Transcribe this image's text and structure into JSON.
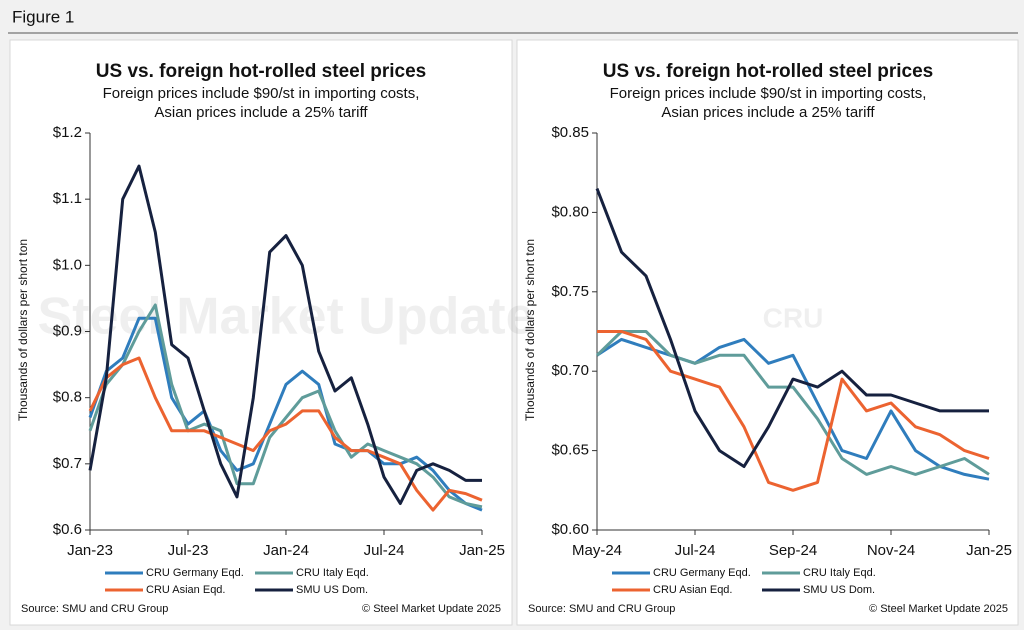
{
  "figure_label": "Figure 1",
  "chart_data": [
    {
      "type": "line",
      "title": "US vs. foreign hot-rolled steel prices",
      "subtitle": [
        "Foreign prices include $90/st in importing costs,",
        "Asian prices include a 25% tariff"
      ],
      "ylabel": "Thousands of dollars per short ton",
      "watermark": "Steel Market Update",
      "source": "Source: SMU and CRU Group",
      "copyright": "© Steel Market Update 2025",
      "x": [
        0,
        1,
        2,
        3,
        4,
        5,
        6,
        7,
        8,
        9,
        10,
        11,
        12,
        13,
        14,
        15,
        16,
        17,
        18,
        19,
        20,
        21,
        22,
        23,
        24
      ],
      "xlim": [
        0,
        24
      ],
      "xticks": [
        {
          "value": 0,
          "label": "Jan-23"
        },
        {
          "value": 6,
          "label": "Jul-23"
        },
        {
          "value": 12,
          "label": "Jan-24"
        },
        {
          "value": 18,
          "label": "Jul-24"
        },
        {
          "value": 24,
          "label": "Jan-25"
        }
      ],
      "ylim": [
        0.6,
        1.2
      ],
      "yticks": [
        {
          "value": 0.6,
          "label": "$0.6"
        },
        {
          "value": 0.7,
          "label": "$0.7"
        },
        {
          "value": 0.8,
          "label": "$0.8"
        },
        {
          "value": 0.9,
          "label": "$0.9"
        },
        {
          "value": 1.0,
          "label": "$1.0"
        },
        {
          "value": 1.1,
          "label": "$1.1"
        },
        {
          "value": 1.2,
          "label": "$1.2"
        }
      ],
      "series": [
        {
          "name": "CRU Germany Eqd.",
          "color": "#2f7dbd",
          "values": [
            0.77,
            0.84,
            0.86,
            0.92,
            0.92,
            0.8,
            0.76,
            0.78,
            0.72,
            0.69,
            0.7,
            0.76,
            0.82,
            0.84,
            0.82,
            0.73,
            0.72,
            0.72,
            0.7,
            0.7,
            0.71,
            0.69,
            0.66,
            0.64,
            0.63
          ]
        },
        {
          "name": "CRU Italy Eqd.",
          "color": "#5f9c9a",
          "values": [
            0.75,
            0.82,
            0.85,
            0.9,
            0.94,
            0.82,
            0.75,
            0.76,
            0.75,
            0.67,
            0.67,
            0.74,
            0.77,
            0.8,
            0.81,
            0.75,
            0.71,
            0.73,
            0.72,
            0.71,
            0.7,
            0.68,
            0.65,
            0.64,
            0.635
          ]
        },
        {
          "name": "CRU Asian Eqd.",
          "color": "#ec6330",
          "values": [
            0.78,
            0.83,
            0.85,
            0.86,
            0.8,
            0.75,
            0.75,
            0.75,
            0.74,
            0.73,
            0.72,
            0.75,
            0.76,
            0.78,
            0.78,
            0.74,
            0.72,
            0.72,
            0.71,
            0.7,
            0.66,
            0.63,
            0.66,
            0.655,
            0.645
          ]
        },
        {
          "name": "SMU US Dom.",
          "color": "#16213f",
          "values": [
            0.69,
            0.83,
            1.1,
            1.15,
            1.05,
            0.88,
            0.86,
            0.78,
            0.7,
            0.65,
            0.8,
            1.02,
            1.045,
            1.0,
            0.87,
            0.81,
            0.83,
            0.76,
            0.68,
            0.64,
            0.69,
            0.7,
            0.69,
            0.675,
            0.675
          ]
        }
      ]
    },
    {
      "type": "line",
      "title": "US vs. foreign hot-rolled steel prices",
      "subtitle": [
        "Foreign prices include $90/st in importing costs,",
        "Asian prices include a 25% tariff"
      ],
      "ylabel": "Thousands of dollars per short ton",
      "watermark": "CRU",
      "source": "Source: SMU and CRU Group",
      "copyright": "© Steel Market Update 2025",
      "x": [
        0,
        0.5,
        1,
        1.5,
        2,
        2.5,
        3,
        3.5,
        4,
        4.5,
        5,
        5.5,
        6,
        6.5,
        7,
        7.5,
        8
      ],
      "xlim": [
        0,
        8
      ],
      "xticks": [
        {
          "value": 0,
          "label": "May-24"
        },
        {
          "value": 2,
          "label": "Jul-24"
        },
        {
          "value": 4,
          "label": "Sep-24"
        },
        {
          "value": 6,
          "label": "Nov-24"
        },
        {
          "value": 8,
          "label": "Jan-25"
        }
      ],
      "ylim": [
        0.6,
        0.85
      ],
      "yticks": [
        {
          "value": 0.6,
          "label": "$0.60"
        },
        {
          "value": 0.65,
          "label": "$0.65"
        },
        {
          "value": 0.7,
          "label": "$0.70"
        },
        {
          "value": 0.75,
          "label": "$0.75"
        },
        {
          "value": 0.8,
          "label": "$0.80"
        },
        {
          "value": 0.85,
          "label": "$0.85"
        }
      ],
      "series": [
        {
          "name": "CRU Germany Eqd.",
          "color": "#2f7dbd",
          "values": [
            0.71,
            0.72,
            0.715,
            0.71,
            0.705,
            0.715,
            0.72,
            0.705,
            0.71,
            0.68,
            0.65,
            0.645,
            0.675,
            0.65,
            0.64,
            0.635,
            0.632
          ]
        },
        {
          "name": "CRU Italy Eqd.",
          "color": "#5f9c9a",
          "values": [
            0.71,
            0.725,
            0.725,
            0.71,
            0.705,
            0.71,
            0.71,
            0.69,
            0.69,
            0.67,
            0.645,
            0.635,
            0.64,
            0.635,
            0.64,
            0.645,
            0.635
          ]
        },
        {
          "name": "CRU Asian Eqd.",
          "color": "#ec6330",
          "values": [
            0.725,
            0.725,
            0.72,
            0.7,
            0.695,
            0.69,
            0.665,
            0.63,
            0.625,
            0.63,
            0.695,
            0.675,
            0.68,
            0.665,
            0.66,
            0.65,
            0.645
          ]
        },
        {
          "name": "SMU US Dom.",
          "color": "#16213f",
          "values": [
            0.815,
            0.775,
            0.76,
            0.72,
            0.675,
            0.65,
            0.64,
            0.665,
            0.695,
            0.69,
            0.7,
            0.685,
            0.685,
            0.68,
            0.675,
            0.675,
            0.675
          ]
        }
      ]
    }
  ]
}
